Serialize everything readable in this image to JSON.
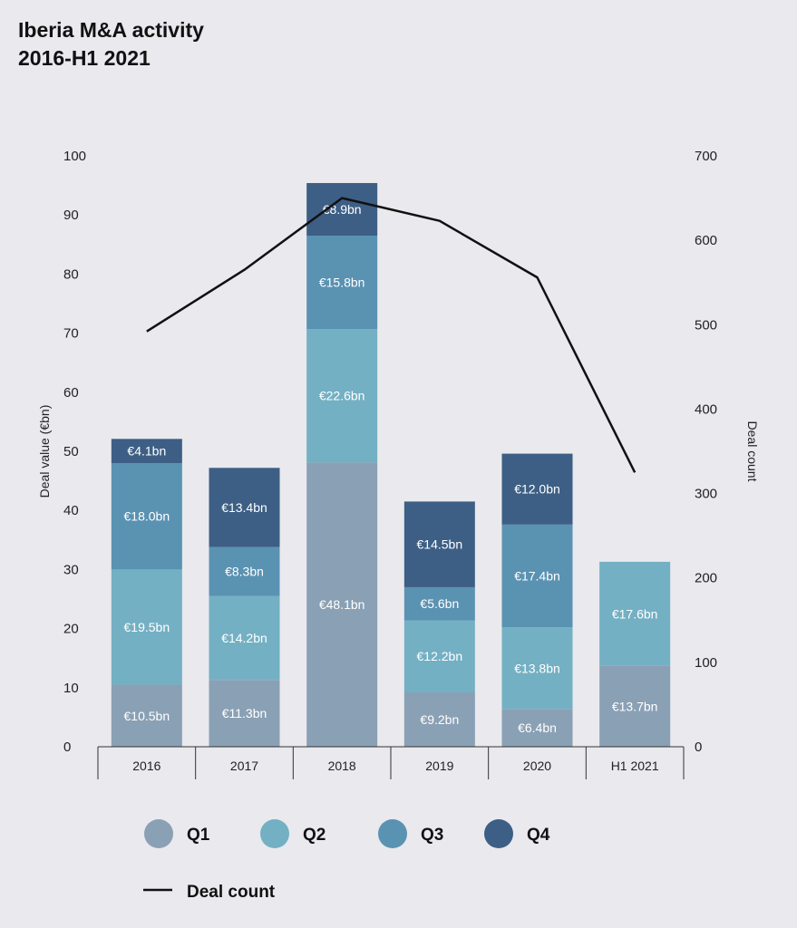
{
  "title_line1": "Iberia M&A activity",
  "title_line2": "2016-H1 2021",
  "chart_data": {
    "type": "bar",
    "stacked": true,
    "categories": [
      "2016",
      "2017",
      "2018",
      "2019",
      "2020",
      "H1 2021"
    ],
    "series": [
      {
        "name": "Q1",
        "color": "#8aa0b5",
        "values": [
          10.5,
          11.3,
          48.1,
          9.2,
          6.4,
          13.7
        ],
        "labels": [
          "€10.5bn",
          "€11.3bn",
          "€48.1bn",
          "€9.2bn",
          "€6.4bn",
          "€13.7bn"
        ]
      },
      {
        "name": "Q2",
        "color": "#74b0c3",
        "values": [
          19.5,
          14.2,
          22.6,
          12.2,
          13.8,
          17.6
        ],
        "labels": [
          "€19.5bn",
          "€14.2bn",
          "€22.6bn",
          "€12.2bn",
          "€13.8bn",
          "€17.6bn"
        ]
      },
      {
        "name": "Q3",
        "color": "#5a92b2",
        "values": [
          18.0,
          8.3,
          15.8,
          5.6,
          17.4,
          null
        ],
        "labels": [
          "€18.0bn",
          "€8.3bn",
          "€15.8bn",
          "€5.6bn",
          "€17.4bn",
          ""
        ]
      },
      {
        "name": "Q4",
        "color": "#3d5f85",
        "values": [
          4.1,
          13.4,
          8.9,
          14.5,
          12.0,
          null
        ],
        "labels": [
          "€4.1bn",
          "€13.4bn",
          "€8.9bn",
          "€14.5bn",
          "€12.0bn",
          ""
        ]
      }
    ],
    "line_series": {
      "name": "Deal count",
      "color": "#111111",
      "values": [
        492,
        565,
        650,
        623,
        556,
        325
      ]
    },
    "ylabel": "Deal value (€bn)",
    "y2label": "Deal count",
    "ylim": [
      0,
      100
    ],
    "y2lim": [
      0,
      700
    ],
    "yticks": [
      0,
      10,
      20,
      30,
      40,
      50,
      60,
      70,
      80,
      90,
      100
    ],
    "y2ticks": [
      0,
      100,
      200,
      300,
      400,
      500,
      600,
      700
    ],
    "grid": false,
    "legend_position": "bottom"
  }
}
